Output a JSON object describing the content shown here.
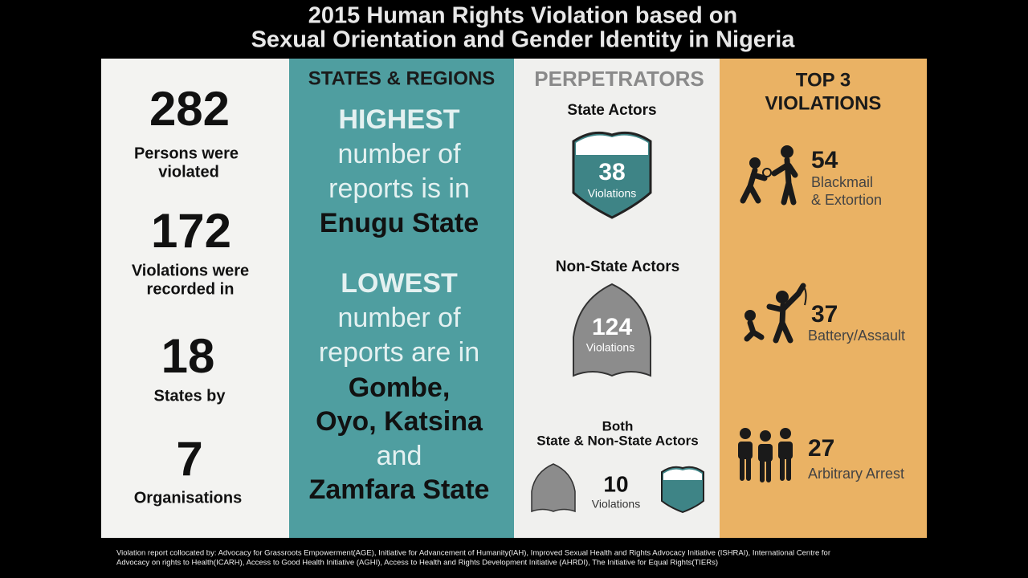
{
  "title": [
    "2015 Human Rights Violation based on",
    "Sexual Orientation and Gender Identity in Nigeria"
  ],
  "summary": [
    {
      "number": 282,
      "label": [
        "Persons were",
        "violated"
      ]
    },
    {
      "number": 172,
      "label": [
        "Violations were",
        "recorded in"
      ]
    },
    {
      "number": 18,
      "label": [
        "States by"
      ]
    },
    {
      "number": 7,
      "label": [
        "Organisations"
      ]
    }
  ],
  "states": {
    "heading": "STATES & REGIONS",
    "highest": [
      "HIGHEST",
      "number of",
      "reports is in",
      "Enugu State"
    ],
    "lowest": [
      "LOWEST",
      "number of",
      "reports are in",
      "Gombe,",
      "Oyo, Katsina",
      "and",
      "Zamfara State"
    ]
  },
  "perpetrators": {
    "heading": "PERPETRATORS",
    "groups": [
      {
        "name": [
          "State Actors"
        ],
        "count": 38,
        "unit": "Violations"
      },
      {
        "name": [
          "Non-State Actors"
        ],
        "count": 124,
        "unit": "Violations"
      },
      {
        "name": [
          "Both",
          "State & Non-State Actors"
        ],
        "count": 10,
        "unit": "Violations"
      }
    ]
  },
  "violations": {
    "heading": [
      "TOP 3",
      "VIOLATIONS"
    ],
    "items": [
      {
        "count": 54,
        "label": [
          "Blackmail",
          "& Extortion"
        ]
      },
      {
        "count": 37,
        "label": [
          "Battery/Assault"
        ]
      },
      {
        "count": 27,
        "label": [
          "Arbitrary Arrest"
        ]
      }
    ]
  },
  "footer": [
    "Violation report collocated by: Advocacy for Grassroots Empowerment(AGE),  Initiative for Advancement of Humanity(IAH), Improved Sexual Health and Rights Advocacy Initiative (ISHRAI), International Centre for",
    "Advocacy on rights to Health(ICARH), Access to Good Health Initiative (AGHI), Access to Health and Rights Development Initiative (AHRDI), The Initiative for Equal Rights(TIERs)"
  ]
}
